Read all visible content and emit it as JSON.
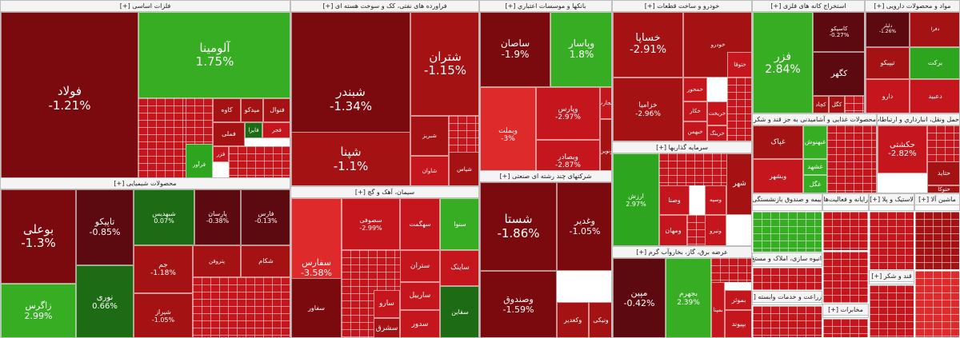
{
  "colors": {
    "strong_neg": "#7b0a0f",
    "mid_neg": "#a51214",
    "neg": "#c4161c",
    "light_neg": "#de2a2a",
    "dark_neg": "#5c0a10",
    "strong_pos": "#2ea51f",
    "pos": "#37ad23",
    "dark_pos": "#1d6b14",
    "neutral": "#7a1a1a"
  },
  "sectors": [
    {
      "id": "basic-metals",
      "title": "فلزات اساسی [+]",
      "tiles": [
        {
          "symbol": "فولاد",
          "pct": "-1.21%",
          "color": "strong_neg"
        },
        {
          "symbol": "آلومینا",
          "pct": "1.75%",
          "color": "pos"
        },
        {
          "symbol": "فنوال",
          "pct": "",
          "color": "mid_neg"
        },
        {
          "symbol": "میدکو",
          "pct": "",
          "color": "mid_neg"
        },
        {
          "symbol": "کاوه",
          "pct": "",
          "color": "mid_neg"
        },
        {
          "symbol": "فملی",
          "pct": "",
          "color": "mid_neg"
        },
        {
          "symbol": "فایرا",
          "pct": "",
          "color": "dark_pos"
        },
        {
          "symbol": "فجر",
          "pct": "",
          "color": "neg"
        },
        {
          "symbol": "فزر",
          "pct": "",
          "color": "neg"
        },
        {
          "symbol": "فرآور",
          "pct": "",
          "color": "strong_pos"
        }
      ]
    },
    {
      "id": "oil-products",
      "title": "فراورده های نفتی، کک و سوخت هسته ای [+]",
      "tiles": [
        {
          "symbol": "شبندر",
          "pct": "-1.34%",
          "color": "strong_neg"
        },
        {
          "symbol": "شتران",
          "pct": "-1.15%",
          "color": "mid_neg"
        },
        {
          "symbol": "شپنا",
          "pct": "-1.1%",
          "color": "mid_neg"
        },
        {
          "symbol": "شبریز",
          "pct": "",
          "color": "mid_neg"
        },
        {
          "symbol": "شپاس",
          "pct": "",
          "color": "mid_neg"
        },
        {
          "symbol": "شاوان",
          "pct": "",
          "color": "neg"
        }
      ]
    },
    {
      "id": "banks",
      "title": "بانکها و موسسات اعتباري [+]",
      "tiles": [
        {
          "symbol": "ساصان",
          "pct": "-1.9%",
          "color": "strong_neg"
        },
        {
          "symbol": "وپاسار",
          "pct": "1.8%",
          "color": "pos"
        },
        {
          "symbol": "وبملت",
          "pct": "-3%",
          "color": "light_neg"
        },
        {
          "symbol": "وپارس",
          "pct": "-2.97%",
          "color": "neg"
        },
        {
          "symbol": "وبصادر",
          "pct": "-2.87%",
          "color": "neg"
        },
        {
          "symbol": "وتجارت",
          "pct": "",
          "color": "neg"
        },
        {
          "symbol": "ونوین",
          "pct": "",
          "color": "mid_neg"
        }
      ]
    },
    {
      "id": "automotive",
      "title": "خودرو و ساخت قطعات [+]",
      "tiles": [
        {
          "symbol": "خساپا",
          "pct": "-2.91%",
          "color": "mid_neg"
        },
        {
          "symbol": "خودرو",
          "pct": "",
          "color": "mid_neg"
        },
        {
          "symbol": "ختوقا",
          "pct": "",
          "color": "neg"
        },
        {
          "symbol": "خزامیا",
          "pct": "-2.96%",
          "color": "mid_neg"
        },
        {
          "symbol": "خمحور",
          "pct": "",
          "color": "neg"
        },
        {
          "symbol": "خکار",
          "pct": "",
          "color": "neg"
        },
        {
          "symbol": "خبهمن",
          "pct": "",
          "color": "neg"
        },
        {
          "symbol": "خریخت",
          "pct": "",
          "color": "neg"
        },
        {
          "symbol": "خرینگ",
          "pct": "",
          "color": "neg"
        }
      ]
    },
    {
      "id": "metal-ores",
      "title": "استخراج کانه های فلزی [+]",
      "tiles": [
        {
          "symbol": "فزر",
          "pct": "2.84%",
          "color": "pos"
        },
        {
          "symbol": "کاسپکو",
          "pct": "-0.27%",
          "color": "dark_neg"
        },
        {
          "symbol": "کگهر",
          "pct": "",
          "color": "dark_neg"
        },
        {
          "symbol": "کچاد",
          "pct": "",
          "color": "mid_neg"
        },
        {
          "symbol": "کگل",
          "pct": "",
          "color": "mid_neg"
        }
      ]
    },
    {
      "id": "pharma",
      "title": "مواد و محصولات دارویی [+]",
      "tiles": [
        {
          "symbol": "دلپلر",
          "pct": "-1.26%",
          "color": "dark_neg"
        },
        {
          "symbol": "دفرا",
          "pct": "",
          "color": "mid_neg"
        },
        {
          "symbol": "تیپیکو",
          "pct": "",
          "color": "mid_neg"
        },
        {
          "symbol": "برکت",
          "pct": "",
          "color": "strong_pos"
        },
        {
          "symbol": "دارو",
          "pct": "",
          "color": "neg"
        },
        {
          "symbol": "دعبید",
          "pct": "",
          "color": "neg"
        }
      ]
    },
    {
      "id": "chemicals",
      "title": "محصولات شیمیایی [+]",
      "tiles": [
        {
          "symbol": "بوعلی",
          "pct": "-1.3%",
          "color": "strong_neg"
        },
        {
          "symbol": "تاپیکو",
          "pct": "-0.85%",
          "color": "dark_neg"
        },
        {
          "symbol": "شبهدیس",
          "pct": "0.07%",
          "color": "dark_pos"
        },
        {
          "symbol": "پارسان",
          "pct": "-0.38%",
          "color": "dark_neg"
        },
        {
          "symbol": "فارس",
          "pct": "-0.13%",
          "color": "dark_neg"
        },
        {
          "symbol": "زاگرس",
          "pct": "2.99%",
          "color": "pos"
        },
        {
          "symbol": "نوری",
          "pct": "0.66%",
          "color": "dark_pos"
        },
        {
          "symbol": "جم",
          "pct": "-1.18%",
          "color": "mid_neg"
        },
        {
          "symbol": "شیراز",
          "pct": "-1.05%",
          "color": "mid_neg"
        },
        {
          "symbol": "پتروفن",
          "pct": "",
          "color": "mid_neg"
        },
        {
          "symbol": "شکام",
          "pct": "",
          "color": "mid_neg"
        }
      ]
    },
    {
      "id": "cement",
      "title": "سیمان، آهک و گچ [+]",
      "tiles": [
        {
          "symbol": "سفارس",
          "pct": "-3.58%",
          "color": "light_neg"
        },
        {
          "symbol": "سفاور",
          "pct": "",
          "color": "strong_neg"
        },
        {
          "symbol": "سصوفی",
          "pct": "-2.99%",
          "color": "neg"
        },
        {
          "symbol": "سهگمت",
          "pct": "",
          "color": "neg"
        },
        {
          "symbol": "ستران",
          "pct": "",
          "color": "neg"
        },
        {
          "symbol": "ساربیل",
          "pct": "",
          "color": "neg"
        },
        {
          "symbol": "سارو",
          "pct": "",
          "color": "neg"
        },
        {
          "symbol": "سشرق",
          "pct": "",
          "color": "mid_neg"
        },
        {
          "symbol": "سدور",
          "pct": "",
          "color": "neg"
        },
        {
          "symbol": "سنوا",
          "pct": "",
          "color": "pos"
        },
        {
          "symbol": "ساینک",
          "pct": "",
          "color": "neg"
        },
        {
          "symbol": "سقاین",
          "pct": "",
          "color": "dark_pos"
        }
      ]
    },
    {
      "id": "multi-industry",
      "title": "شرکتهای چند رشته ای صنعتی [+]",
      "tiles": [
        {
          "symbol": "شستا",
          "pct": "-1.86%",
          "color": "strong_neg"
        },
        {
          "symbol": "وغدیر",
          "pct": "-1.05%",
          "color": "strong_neg"
        },
        {
          "symbol": "وصندوق",
          "pct": "-1.59%",
          "color": "strong_neg"
        },
        {
          "symbol": "وکغدیر",
          "pct": "",
          "color": "mid_neg"
        },
        {
          "symbol": "ونیکی",
          "pct": "",
          "color": "mid_neg"
        }
      ]
    },
    {
      "id": "investments",
      "title": "سرمایه گذاریها [+]",
      "tiles": [
        {
          "symbol": "ارزش",
          "pct": "2.97%",
          "color": "strong_pos"
        },
        {
          "symbol": "وصنا",
          "pct": "",
          "color": "neg"
        },
        {
          "symbol": "ومهان",
          "pct": "",
          "color": "neg"
        },
        {
          "symbol": "وسپه",
          "pct": "",
          "color": "neg"
        },
        {
          "symbol": "ونیرو",
          "pct": "",
          "color": "neg"
        },
        {
          "symbol": "شهر",
          "pct": "",
          "color": "mid_neg"
        }
      ]
    },
    {
      "id": "utilities",
      "title": "عرضه برق، گاز، بخاروآب گرم [+]",
      "tiles": [
        {
          "symbol": "مپین",
          "pct": "-0.42%",
          "color": "dark_neg"
        },
        {
          "symbol": "بجهرم",
          "pct": "2.39%",
          "color": "pos"
        },
        {
          "symbol": "بموثر",
          "pct": "",
          "color": "neg"
        },
        {
          "symbol": "بپیوند",
          "pct": "",
          "color": "neg"
        },
        {
          "symbol": "بمپنا",
          "pct": "",
          "color": "neg"
        }
      ]
    },
    {
      "id": "food",
      "title": "محصولات غذایی و آشامیدنی به جز قند و شکر [+]",
      "tiles": [
        {
          "symbol": "غپاک",
          "pct": "",
          "color": "mid_neg"
        },
        {
          "symbol": "غبهنوش",
          "pct": "",
          "color": "pos"
        },
        {
          "symbol": "غشهد",
          "pct": "",
          "color": "pos"
        },
        {
          "symbol": "غگل",
          "pct": "",
          "color": "pos"
        },
        {
          "symbol": "وبشهر",
          "pct": "",
          "color": "neg"
        }
      ]
    },
    {
      "id": "transport",
      "title": "حمل ونقل، انبارداري و ارتباطات [+]",
      "tiles": [
        {
          "symbol": "حکشتی",
          "pct": "-2.82%",
          "color": "neg"
        },
        {
          "symbol": "حتاید",
          "pct": "",
          "color": "mid_neg"
        },
        {
          "symbol": "حتوکا",
          "pct": "",
          "color": "mid_neg"
        }
      ]
    }
  ],
  "small_sectors": [
    "بیمه و صندوق بازنشستگی [+]",
    "رایانه و فعالیت‌ها [+]",
    "لاستیک و پلا [+]",
    "ماشین آلا [+]",
    "انبوه سازی، املاک و مستغ [+]",
    "زراعت و خدمات وابسته [+]",
    "قند و شکر [+]",
    "مخابرات [+]"
  ]
}
